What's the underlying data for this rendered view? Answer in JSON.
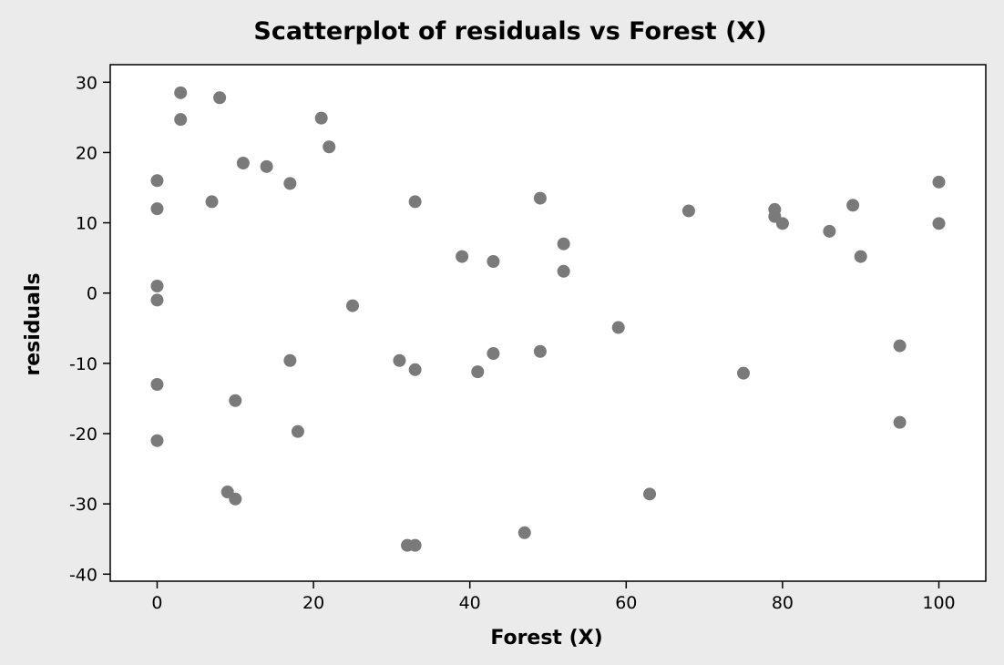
{
  "chart_data": {
    "type": "scatter",
    "title": "Scatterplot of residuals vs Forest (X)",
    "xlabel": "Forest (X)",
    "ylabel": "residuals",
    "xlim": [
      -6,
      106
    ],
    "ylim": [
      -41,
      32.5
    ],
    "xticks": [
      0,
      20,
      40,
      60,
      80,
      100
    ],
    "yticks": [
      30,
      20,
      10,
      0,
      -10,
      -20,
      -30,
      -40
    ],
    "x_tick_labels": [
      "0",
      "20",
      "40",
      "60",
      "80",
      "100"
    ],
    "y_tick_labels": [
      "30",
      "20",
      "10",
      "0",
      "-10",
      "-20",
      "-30",
      "-40"
    ],
    "grid": false,
    "marker_color": "#7a7a7a",
    "points": [
      {
        "x": 0,
        "y": 16
      },
      {
        "x": 0,
        "y": 12
      },
      {
        "x": 0,
        "y": 1
      },
      {
        "x": 0,
        "y": -1
      },
      {
        "x": 0,
        "y": -13
      },
      {
        "x": 0,
        "y": -21
      },
      {
        "x": 3,
        "y": 28.5
      },
      {
        "x": 3,
        "y": 24.7
      },
      {
        "x": 7,
        "y": 13
      },
      {
        "x": 8,
        "y": 27.8
      },
      {
        "x": 9,
        "y": -28.3
      },
      {
        "x": 10,
        "y": -29.3
      },
      {
        "x": 10,
        "y": -15.3
      },
      {
        "x": 11,
        "y": 18.5
      },
      {
        "x": 14,
        "y": 18
      },
      {
        "x": 17,
        "y": 15.6
      },
      {
        "x": 17,
        "y": -9.6
      },
      {
        "x": 18,
        "y": -19.7
      },
      {
        "x": 21,
        "y": 24.9
      },
      {
        "x": 22,
        "y": 20.8
      },
      {
        "x": 25,
        "y": -1.8
      },
      {
        "x": 31,
        "y": -9.6
      },
      {
        "x": 32,
        "y": -35.9
      },
      {
        "x": 33,
        "y": 13
      },
      {
        "x": 33,
        "y": -10.9
      },
      {
        "x": 33,
        "y": -35.9
      },
      {
        "x": 39,
        "y": 5.2
      },
      {
        "x": 41,
        "y": -11.2
      },
      {
        "x": 43,
        "y": 4.5
      },
      {
        "x": 43,
        "y": -8.6
      },
      {
        "x": 47,
        "y": -34.1
      },
      {
        "x": 49,
        "y": 13.5
      },
      {
        "x": 49,
        "y": -8.3
      },
      {
        "x": 52,
        "y": 7
      },
      {
        "x": 52,
        "y": 3.1
      },
      {
        "x": 59,
        "y": -4.9
      },
      {
        "x": 63,
        "y": -28.6
      },
      {
        "x": 68,
        "y": 11.7
      },
      {
        "x": 75,
        "y": -11.4
      },
      {
        "x": 79,
        "y": 11.9
      },
      {
        "x": 79,
        "y": 10.9
      },
      {
        "x": 80,
        "y": 9.9
      },
      {
        "x": 86,
        "y": 8.8
      },
      {
        "x": 89,
        "y": 12.5
      },
      {
        "x": 90,
        "y": 5.2
      },
      {
        "x": 95,
        "y": -7.5
      },
      {
        "x": 95,
        "y": -18.4
      },
      {
        "x": 100,
        "y": 15.8
      },
      {
        "x": 100,
        "y": 9.9
      }
    ]
  }
}
